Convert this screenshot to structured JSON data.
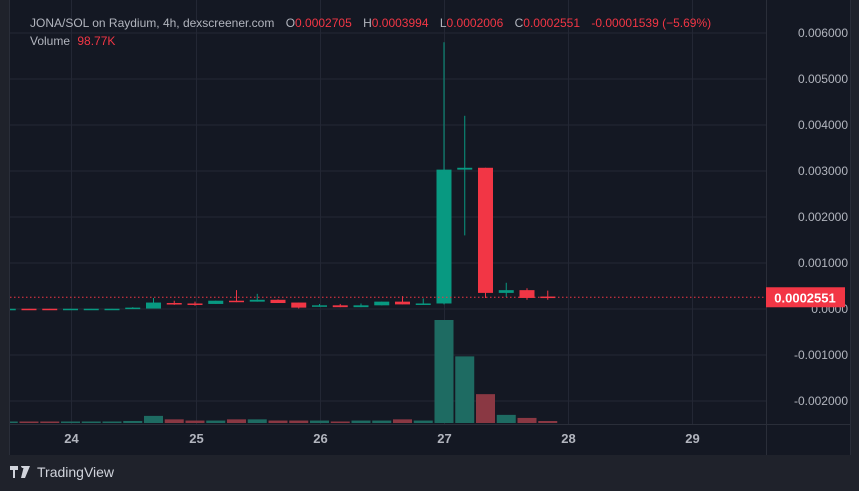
{
  "header": {
    "symbol": "JONA/SOL on Raydium, 4h, dexscreener.com",
    "open_label": "O",
    "open": "0.0002705",
    "high_label": "H",
    "high": "0.0003994",
    "low_label": "L",
    "low": "0.0002006",
    "close_label": "C",
    "close": "0.0002551",
    "change": "-0.00001539 (−5.69%)"
  },
  "volume_legend": {
    "label": "Volume",
    "value": "98.77K"
  },
  "price_axis": {
    "ticks": [
      "0.006000",
      "0.005000",
      "0.004000",
      "0.003000",
      "0.002000",
      "0.001000",
      "0.0000",
      "-0.001000",
      "-0.002000"
    ],
    "current_price_label": "0.0002551"
  },
  "time_axis": {
    "ticks": [
      "24",
      "25",
      "26",
      "27",
      "28",
      "29"
    ]
  },
  "branding": {
    "name": "TradingView"
  },
  "colors": {
    "up": "#089981",
    "down": "#f23645",
    "up_volume": "#1e6b62",
    "down_volume": "#8a3843",
    "background": "#141823",
    "grid": "#232734"
  },
  "chart_data": {
    "type": "candlestick",
    "interval": "4h",
    "ylim": [
      -0.0025,
      0.0062
    ],
    "grid": true,
    "candles": [
      {
        "o": 5e-06,
        "h": 6e-06,
        "l": 4e-06,
        "c": 5e-06
      },
      {
        "o": 6e-06,
        "h": 6e-06,
        "l": 4e-06,
        "c": 5e-06
      },
      {
        "o": 6e-06,
        "h": 6e-06,
        "l": 4e-06,
        "c": 5e-06
      },
      {
        "o": 5e-06,
        "h": 6e-06,
        "l": 4e-06,
        "c": 6e-06
      },
      {
        "o": 5e-06,
        "h": 6e-06,
        "l": 4e-06,
        "c": 6e-06
      },
      {
        "o": 5e-06,
        "h": 6e-06,
        "l": 4e-06,
        "c": 6e-06
      },
      {
        "o": 1e-05,
        "h": 4e-05,
        "l": 1e-05,
        "c": 3e-05
      },
      {
        "o": 1e-05,
        "h": 0.00024,
        "l": 1e-05,
        "c": 0.00014
      },
      {
        "o": 0.00013,
        "h": 0.00018,
        "l": 9e-05,
        "c": 0.00012
      },
      {
        "o": 0.00012,
        "h": 0.00016,
        "l": 7e-05,
        "c": 0.00011
      },
      {
        "o": 0.00011,
        "h": 0.00018,
        "l": 0.00011,
        "c": 0.00018
      },
      {
        "o": 0.00018,
        "h": 0.00041,
        "l": 0.00015,
        "c": 0.00017
      },
      {
        "o": 0.00016,
        "h": 0.00033,
        "l": 0.00016,
        "c": 0.0002
      },
      {
        "o": 0.0002,
        "h": 0.00021,
        "l": 0.00013,
        "c": 0.00013
      },
      {
        "o": 0.00014,
        "h": 0.00014,
        "l": 1e-05,
        "c": 3e-05
      },
      {
        "o": 7e-05,
        "h": 0.00011,
        "l": 5e-05,
        "c": 8e-05
      },
      {
        "o": 8e-05,
        "h": 0.00011,
        "l": 4e-05,
        "c": 4e-05
      },
      {
        "o": 4e-05,
        "h": 0.00012,
        "l": 4e-05,
        "c": 8e-05
      },
      {
        "o": 8e-05,
        "h": 0.00016,
        "l": 8e-05,
        "c": 0.00016
      },
      {
        "o": 0.00016,
        "h": 0.00028,
        "l": 0.0001,
        "c": 0.0001
      },
      {
        "o": 0.00011,
        "h": 0.00023,
        "l": 0.0001,
        "c": 0.00012
      },
      {
        "o": 0.00012,
        "h": 0.0058,
        "l": 0.0001,
        "c": 0.00303
      },
      {
        "o": 0.00303,
        "h": 0.0042,
        "l": 0.0016,
        "c": 0.00307
      },
      {
        "o": 0.00307,
        "h": 0.00307,
        "l": 0.00024,
        "c": 0.00035
      },
      {
        "o": 0.00035,
        "h": 0.00057,
        "l": 0.00026,
        "c": 0.00041
      },
      {
        "o": 0.00041,
        "h": 0.00045,
        "l": 0.0002,
        "c": 0.00024
      },
      {
        "o": 0.0002705,
        "h": 0.0003994,
        "l": 0.0002006,
        "c": 0.0002551
      }
    ],
    "volume": [
      20000,
      30000,
      30000,
      20000,
      20000,
      20000,
      100000,
      350000,
      180000,
      120000,
      120000,
      180000,
      180000,
      120000,
      120000,
      120000,
      60000,
      120000,
      120000,
      180000,
      120000,
      5070000,
      3280000,
      1420000,
      400000,
      250000,
      98770
    ]
  }
}
